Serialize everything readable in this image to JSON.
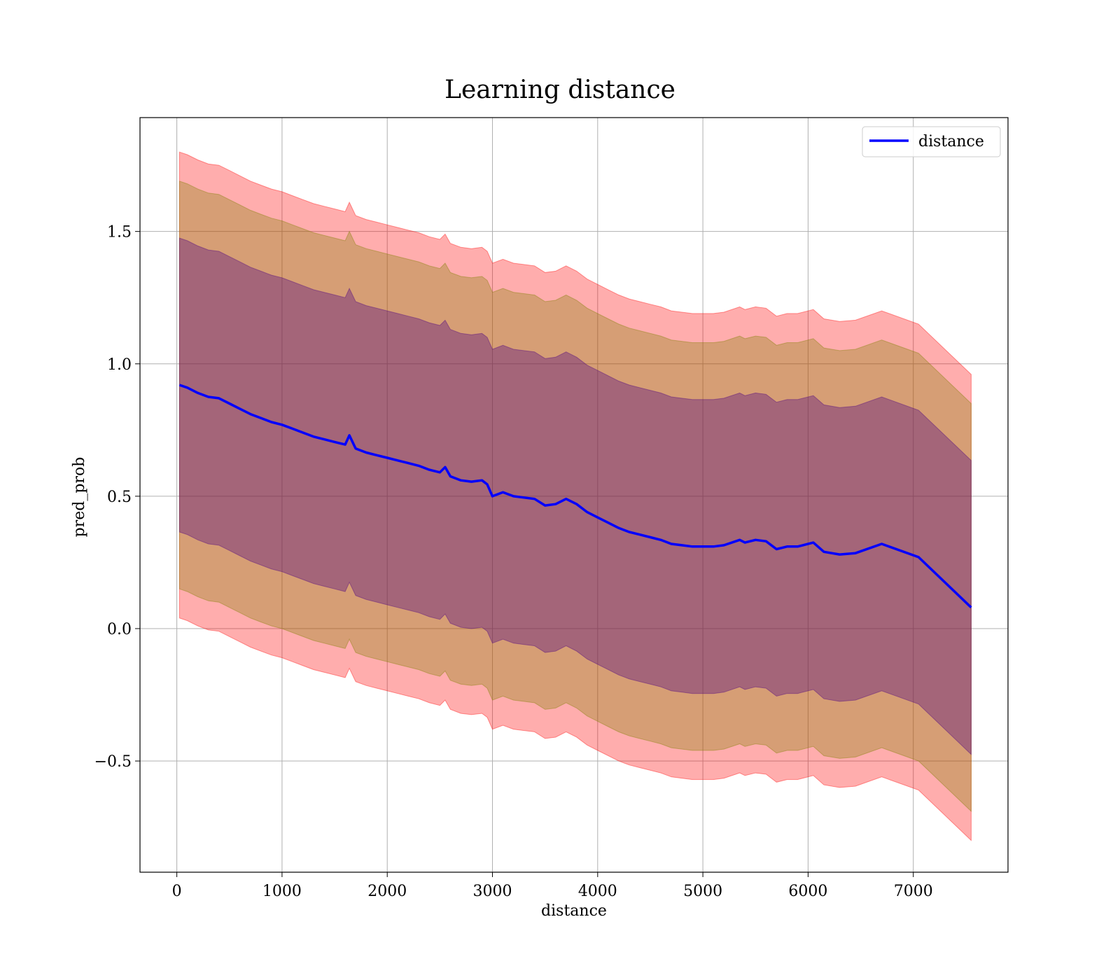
{
  "chart_data": {
    "type": "line",
    "title": "Learning distance",
    "xlabel": "distance",
    "ylabel": "pred_prob",
    "xlim": [
      -350,
      7900
    ],
    "ylim": [
      -0.92,
      1.93
    ],
    "xticks": [
      0,
      1000,
      2000,
      3000,
      4000,
      5000,
      6000,
      7000
    ],
    "xtick_labels": [
      "0",
      "1000",
      "2000",
      "3000",
      "4000",
      "5000",
      "6000",
      "7000"
    ],
    "yticks": [
      -0.5,
      0.0,
      0.5,
      1.0,
      1.5
    ],
    "ytick_labels": [
      "−0.5",
      "0.0",
      "0.5",
      "1.0",
      "1.5"
    ],
    "grid": true,
    "legend": {
      "position": "top-right",
      "entries": [
        {
          "label": "distance",
          "color": "#0000ff"
        }
      ]
    },
    "x": [
      25,
      100,
      200,
      300,
      400,
      500,
      600,
      700,
      800,
      900,
      1000,
      1100,
      1200,
      1300,
      1400,
      1500,
      1600,
      1640,
      1700,
      1800,
      1900,
      2000,
      2100,
      2200,
      2300,
      2400,
      2500,
      2550,
      2600,
      2700,
      2800,
      2900,
      2950,
      3000,
      3100,
      3200,
      3300,
      3400,
      3500,
      3600,
      3700,
      3800,
      3900,
      4000,
      4100,
      4200,
      4300,
      4400,
      4500,
      4600,
      4700,
      4800,
      4900,
      5000,
      5100,
      5200,
      5350,
      5400,
      5500,
      5600,
      5700,
      5800,
      5900,
      6050,
      6150,
      6300,
      6450,
      6700,
      7050,
      7550
    ],
    "series": [
      {
        "name": "distance",
        "color": "#0000ff",
        "values": [
          0.92,
          0.91,
          0.89,
          0.875,
          0.87,
          0.85,
          0.83,
          0.81,
          0.795,
          0.78,
          0.77,
          0.755,
          0.74,
          0.725,
          0.715,
          0.705,
          0.695,
          0.73,
          0.68,
          0.665,
          0.655,
          0.645,
          0.635,
          0.625,
          0.615,
          0.6,
          0.59,
          0.61,
          0.575,
          0.56,
          0.555,
          0.56,
          0.545,
          0.5,
          0.515,
          0.5,
          0.495,
          0.49,
          0.465,
          0.47,
          0.49,
          0.47,
          0.44,
          0.42,
          0.4,
          0.38,
          0.365,
          0.355,
          0.345,
          0.335,
          0.32,
          0.315,
          0.31,
          0.31,
          0.31,
          0.315,
          0.335,
          0.325,
          0.335,
          0.33,
          0.3,
          0.31,
          0.31,
          0.325,
          0.29,
          0.28,
          0.285,
          0.32,
          0.27,
          0.08
        ]
      }
    ],
    "bands": [
      {
        "name": "outer",
        "color": "#ff0000",
        "opacity": 0.32,
        "half_width": 0.88
      },
      {
        "name": "middle",
        "color": "#808000",
        "opacity": 0.32,
        "half_width": 0.77
      },
      {
        "name": "inner",
        "color": "#4b0082",
        "opacity": 0.36,
        "half_width": 0.555
      }
    ]
  }
}
